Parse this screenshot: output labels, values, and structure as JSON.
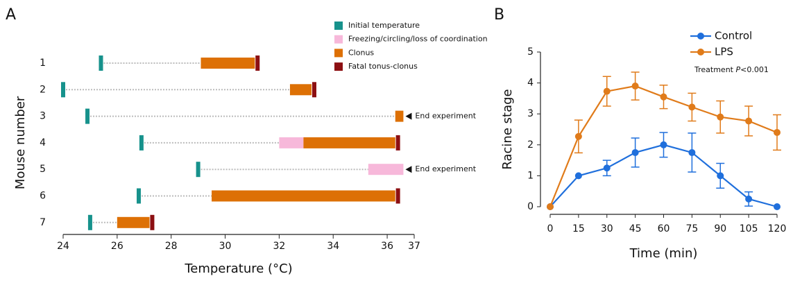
{
  "chart_data": [
    {
      "type": "range",
      "panel_label": "A",
      "xlabel": "Temperature (°C)",
      "ylabel": "Mouse number",
      "categories": [
        "1",
        "2",
        "3",
        "4",
        "5",
        "6",
        "7"
      ],
      "xlim": [
        24,
        37
      ],
      "xticks": [
        24,
        26,
        28,
        30,
        32,
        34,
        36,
        37
      ],
      "legend": [
        {
          "name": "Initial temperature",
          "color": "#17928c"
        },
        {
          "name": "Freezing/circling/loss of coordination",
          "color": "#f7b8da"
        },
        {
          "name": "Clonus",
          "color": "#dd7005"
        },
        {
          "name": "Fatal tonus-clonus",
          "color": "#8c0f12"
        }
      ],
      "mice": [
        {
          "initial": 25.4,
          "freezing": null,
          "clonus": [
            29.1,
            31.1
          ],
          "fatal": 31.2,
          "note": null
        },
        {
          "initial": 24.0,
          "freezing": null,
          "clonus": [
            32.4,
            33.2
          ],
          "fatal": 33.3,
          "note": null
        },
        {
          "initial": 24.9,
          "freezing": null,
          "clonus": [
            36.3,
            36.6
          ],
          "fatal": null,
          "note": "End experiment"
        },
        {
          "initial": 26.9,
          "freezing": [
            32.0,
            32.9
          ],
          "clonus": [
            32.9,
            36.3
          ],
          "fatal": 36.4,
          "note": null
        },
        {
          "initial": 29.0,
          "freezing": [
            35.3,
            36.6
          ],
          "clonus": null,
          "fatal": null,
          "note": "End experiment"
        },
        {
          "initial": 26.8,
          "freezing": null,
          "clonus": [
            29.5,
            36.3
          ],
          "fatal": 36.4,
          "note": null
        },
        {
          "initial": 25.0,
          "freezing": null,
          "clonus": [
            26.0,
            27.2
          ],
          "fatal": 27.3,
          "note": null
        }
      ]
    },
    {
      "type": "line",
      "panel_label": "B",
      "xlabel": "Time (min)",
      "ylabel": "Racine stage",
      "x": [
        0,
        15,
        30,
        45,
        60,
        75,
        90,
        105,
        120
      ],
      "xlim": [
        0,
        120
      ],
      "xticks": [
        0,
        15,
        30,
        45,
        60,
        75,
        90,
        105,
        120
      ],
      "ylim": [
        0,
        5
      ],
      "yticks": [
        0,
        1,
        2,
        3,
        4,
        5
      ],
      "annotation": {
        "prefix": "Treatment ",
        "italic": "P",
        "suffix": "<0.001"
      },
      "series": [
        {
          "name": "Control",
          "color": "#1f6fdc",
          "values": [
            0,
            1,
            1.25,
            1.75,
            2,
            1.75,
            1,
            0.25,
            0
          ],
          "errors": [
            0,
            0,
            0.25,
            0.47,
            0.4,
            0.63,
            0.4,
            0.23,
            0
          ]
        },
        {
          "name": "LPS",
          "color": "#e07b1a",
          "values": [
            0,
            2.27,
            3.73,
            3.9,
            3.55,
            3.22,
            2.9,
            2.77,
            2.4
          ],
          "errors": [
            0,
            0.53,
            0.48,
            0.45,
            0.38,
            0.45,
            0.52,
            0.48,
            0.57
          ]
        }
      ]
    }
  ]
}
